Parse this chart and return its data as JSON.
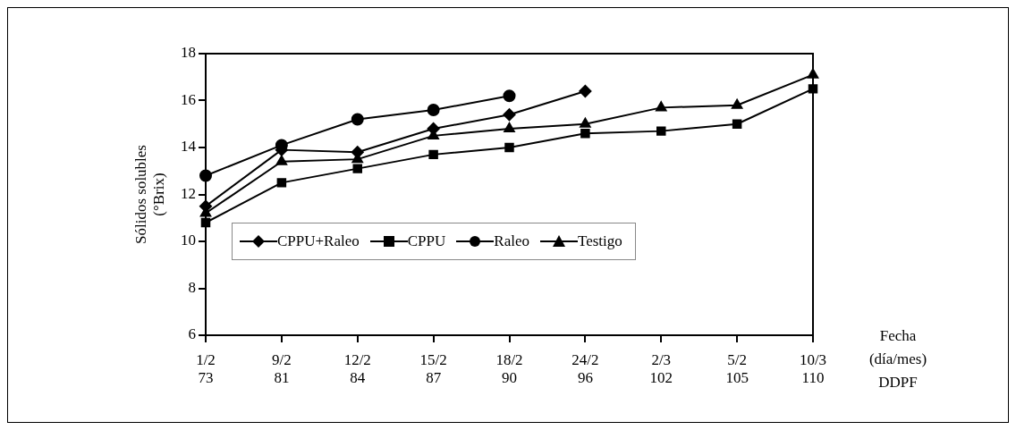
{
  "chart_data": {
    "type": "line",
    "ylabel": "Sólidos solubles\n(°Brix)",
    "xlabel": "Fecha\n(día/mes)\nDDPF",
    "categories": [
      "1/2\n73",
      "9/2\n81",
      "12/2\n84",
      "15/2\n87",
      "18/2\n90",
      "24/2\n96",
      "2/3\n102",
      "5/2\n105",
      "10/3\n110"
    ],
    "series": [
      {
        "name": "CPPU+Raleo",
        "color": "#000000",
        "marker": "diamond",
        "values": [
          11.5,
          13.9,
          13.8,
          14.8,
          15.4,
          16.4,
          null,
          null,
          null
        ]
      },
      {
        "name": "CPPU",
        "color": "#000000",
        "marker": "square",
        "values": [
          10.8,
          12.5,
          13.1,
          13.7,
          14.0,
          14.6,
          14.7,
          15.0,
          16.5
        ]
      },
      {
        "name": "Raleo",
        "color": "#000000",
        "marker": "circle",
        "values": [
          12.8,
          14.1,
          15.2,
          15.6,
          16.2,
          null,
          null,
          null,
          null
        ]
      },
      {
        "name": "Testigo",
        "color": "#000000",
        "marker": "triangle",
        "values": [
          11.2,
          13.4,
          13.5,
          14.5,
          14.8,
          15.0,
          15.7,
          15.8,
          17.1
        ]
      }
    ],
    "ylim": [
      6,
      18
    ],
    "yticks": [
      6,
      8,
      10,
      12,
      14,
      16,
      18
    ],
    "grid": false,
    "legend": "bottom"
  }
}
